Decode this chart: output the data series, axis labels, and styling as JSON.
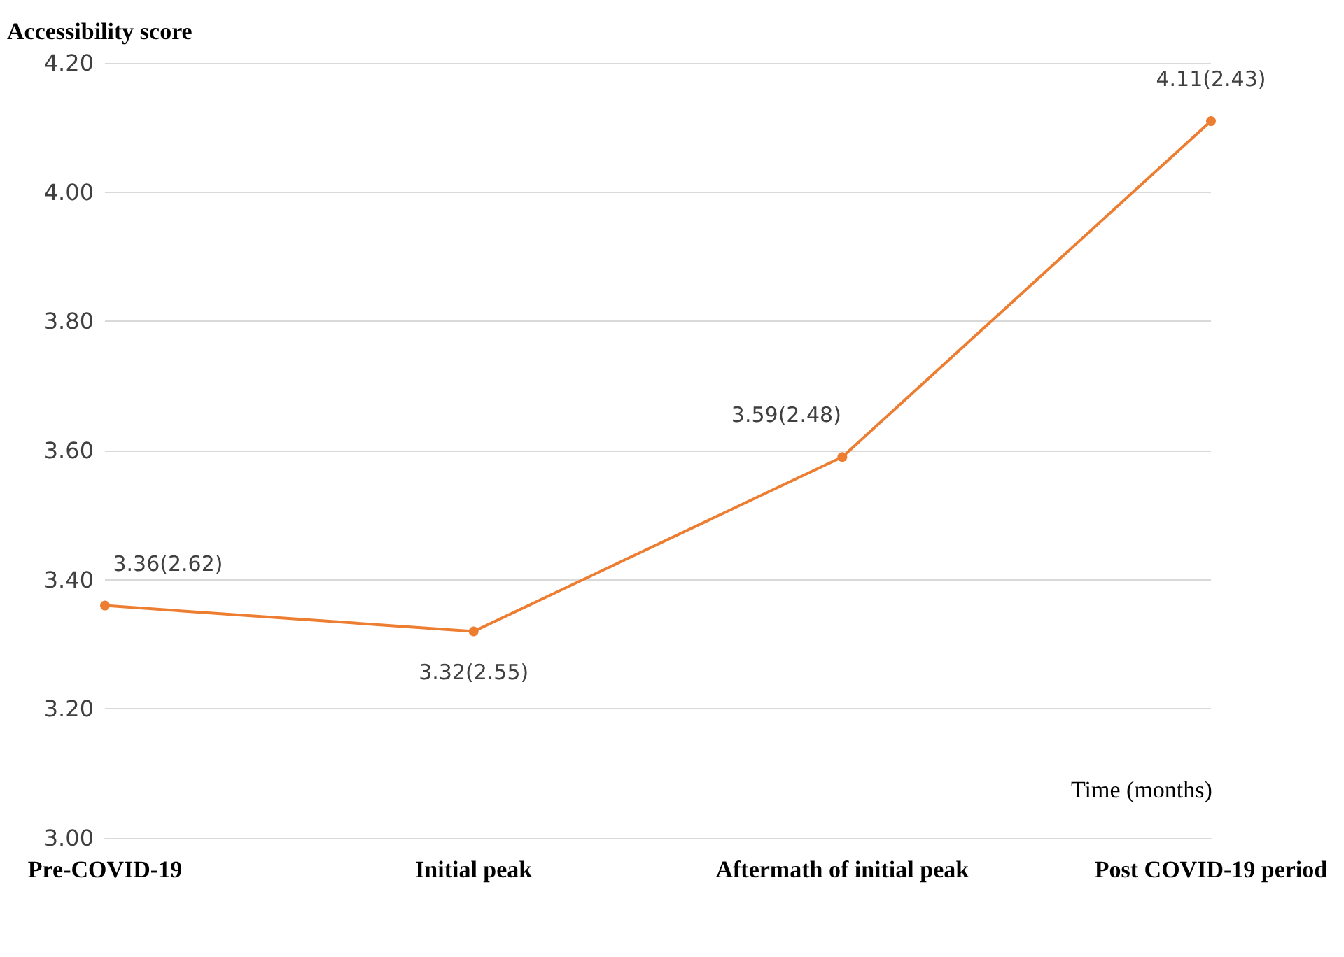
{
  "chart_data": {
    "type": "line",
    "ylabel": "Accessibility score",
    "xlabel": "Time (months)",
    "categories": [
      "Pre-COVID-19",
      "Initial peak",
      "Aftermath of initial peak",
      "Post COVID-19 period"
    ],
    "series": [
      {
        "color": "#ed7d31",
        "values": [
          3.36,
          3.32,
          3.59,
          4.11
        ],
        "value_labels": [
          "3.36(2.62)",
          "3.32(2.55)",
          "3.59(2.48)",
          "4.11(2.43)"
        ]
      }
    ],
    "ylim": [
      3,
      4.2
    ],
    "yticks": [
      {
        "value": 3,
        "label": "3.00"
      },
      {
        "value": 3.2,
        "label": "3.20"
      },
      {
        "value": 3.4,
        "label": "3.40"
      },
      {
        "value": 3.6,
        "label": "3.60"
      },
      {
        "value": 3.8,
        "label": "3.80"
      },
      {
        "value": 4,
        "label": "4.00"
      },
      {
        "value": 4.2,
        "label": "4.20"
      }
    ],
    "grid": "y",
    "marker": "circle",
    "line_style": "solid"
  }
}
